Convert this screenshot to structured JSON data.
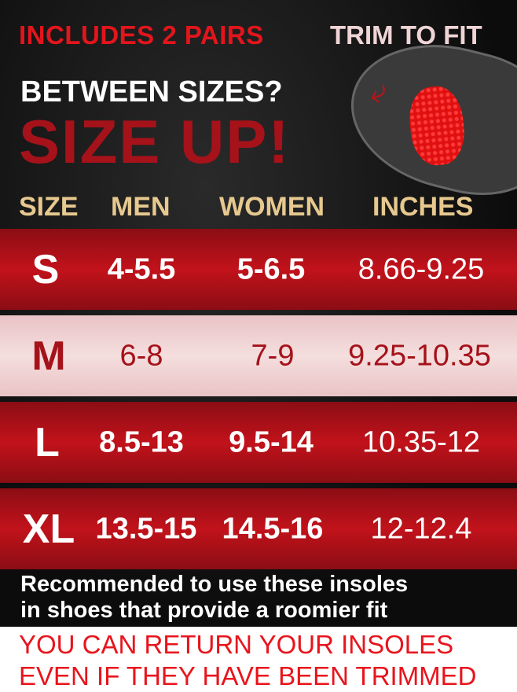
{
  "header": {
    "includes": "INCLUDES 2 PAIRS",
    "trim": "TRIM TO FIT",
    "between": "BETWEEN SIZES?",
    "size_up": "SIZE UP!"
  },
  "columns": [
    "SIZE",
    "MEN",
    "WOMEN",
    "INCHES"
  ],
  "rows": [
    {
      "size": "S",
      "men": "4-5.5",
      "women": "5-6.5",
      "inches": "8.66-9.25"
    },
    {
      "size": "M",
      "men": "6-8",
      "women": "7-9",
      "inches": "9.25-10.35"
    },
    {
      "size": "L",
      "men": "8.5-13",
      "women": "9.5-14",
      "inches": "10.35-12"
    },
    {
      "size": "XL",
      "men": "13.5-15",
      "women": "14.5-16",
      "inches": "12-12.4"
    }
  ],
  "note": {
    "line1": "Recommended to use these insoles",
    "line2": "in shoes that provide a roomier fit"
  },
  "return": {
    "line1": "YOU CAN RETURN YOUR INSOLES",
    "line2": "EVEN IF THEY HAVE BEEN TRIMMED"
  },
  "colors": {
    "red": "#e3151c",
    "dark_red": "#a5121a",
    "gold": "#e7c98f"
  }
}
